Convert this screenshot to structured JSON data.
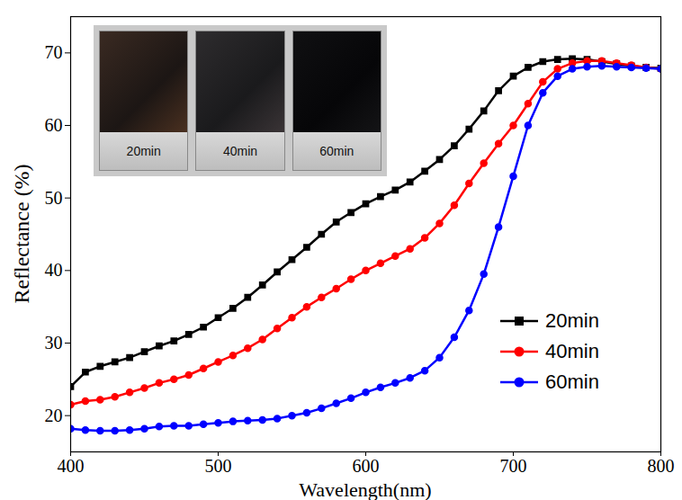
{
  "chart_data": {
    "type": "line",
    "x_label": "Wavelength(nm)",
    "y_label": "Reflectance (%)",
    "x": [
      400,
      410,
      420,
      430,
      440,
      450,
      460,
      470,
      480,
      490,
      500,
      510,
      520,
      530,
      540,
      550,
      560,
      570,
      580,
      590,
      600,
      610,
      620,
      630,
      640,
      650,
      660,
      670,
      680,
      690,
      700,
      710,
      720,
      730,
      740,
      750,
      760,
      770,
      780,
      790,
      800
    ],
    "series": [
      {
        "name": "20min",
        "color": "#000000",
        "marker": "square",
        "values": [
          24,
          26,
          26.8,
          27.4,
          28,
          28.8,
          29.6,
          30.3,
          31.2,
          32.2,
          33.5,
          34.8,
          36.3,
          38,
          39.8,
          41.5,
          43.2,
          45,
          46.7,
          48,
          49.2,
          50.2,
          51.1,
          52.2,
          53.7,
          55.3,
          57.2,
          59.5,
          62,
          64.8,
          66.8,
          68,
          68.8,
          69.1,
          69.2,
          69.1,
          68.8,
          68.5,
          68.2,
          68,
          67.9
        ]
      },
      {
        "name": "40min",
        "color": "#ff0000",
        "marker": "circle",
        "values": [
          21.5,
          22,
          22.2,
          22.6,
          23.2,
          23.8,
          24.5,
          25,
          25.6,
          26.5,
          27.4,
          28.3,
          29.3,
          30.5,
          32,
          33.5,
          35,
          36.3,
          37.5,
          38.8,
          40,
          41,
          42,
          43,
          44.5,
          46.5,
          49,
          52,
          54.8,
          57.5,
          60,
          63,
          66,
          67.8,
          68.6,
          68.9,
          68.9,
          68.6,
          68.3,
          68,
          67.8
        ]
      },
      {
        "name": "60min",
        "color": "#0000ff",
        "marker": "circle",
        "values": [
          18.2,
          18,
          17.9,
          17.9,
          18,
          18.2,
          18.5,
          18.6,
          18.6,
          18.8,
          19,
          19.2,
          19.3,
          19.4,
          19.6,
          20,
          20.4,
          21,
          21.7,
          22.4,
          23.2,
          23.9,
          24.5,
          25.2,
          26.2,
          28,
          30.8,
          34.5,
          39.5,
          46,
          53,
          60,
          64.5,
          66.8,
          67.8,
          68.1,
          68.2,
          68.1,
          68,
          67.9,
          67.8
        ]
      }
    ],
    "xlim": [
      400,
      800
    ],
    "xticks": [
      400,
      500,
      600,
      700,
      800
    ],
    "ylim": [
      15,
      75
    ],
    "yticks": [
      20,
      30,
      40,
      50,
      60,
      70
    ],
    "legend": "lower right",
    "grid": false,
    "annotations": [
      "20min",
      "40min",
      "60min"
    ]
  }
}
